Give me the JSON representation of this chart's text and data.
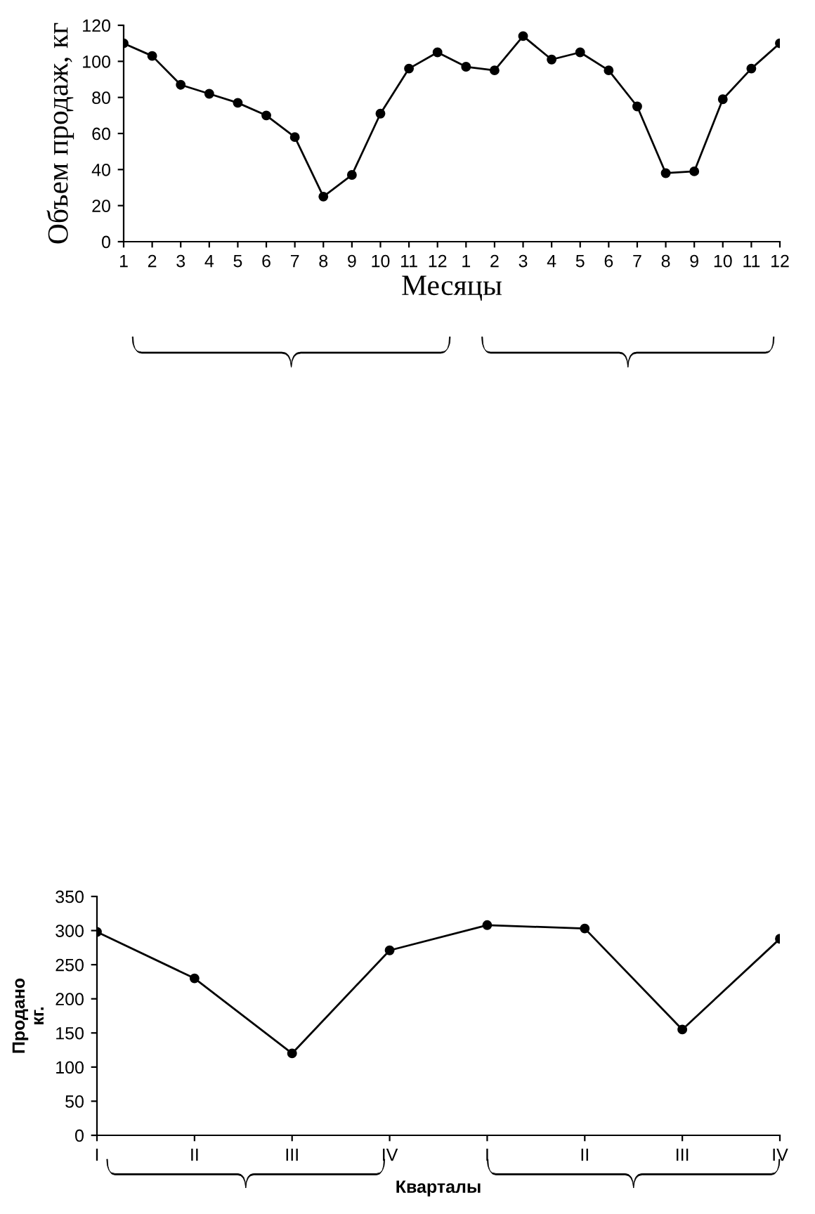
{
  "chart_data": [
    {
      "type": "line",
      "xlabel": "Месяцы",
      "ylabel": "Объем продаж, кг",
      "categories": [
        "1",
        "2",
        "3",
        "4",
        "5",
        "6",
        "7",
        "8",
        "9",
        "10",
        "11",
        "12",
        "1",
        "2",
        "3",
        "4",
        "5",
        "6",
        "7",
        "8",
        "9",
        "10",
        "11",
        "12"
      ],
      "series": [
        {
          "color": "#000000",
          "values": [
            110,
            103,
            87,
            82,
            77,
            70,
            58,
            25,
            37,
            71,
            96,
            105,
            97,
            95,
            114,
            101,
            105,
            95,
            75,
            38,
            39,
            79,
            96,
            110
          ]
        }
      ],
      "ylim": [
        0,
        120
      ],
      "yticks": [
        0,
        20,
        40,
        60,
        80,
        100,
        120
      ],
      "marker": "circle",
      "line_style": "solid",
      "grid": false,
      "legend": false
    },
    {
      "type": "line",
      "xlabel": "Кварталы",
      "ylabel": "Продано\nкг.",
      "categories": [
        "I",
        "II",
        "III",
        "IV",
        "I",
        "II",
        "III",
        "IV"
      ],
      "series": [
        {
          "color": "#000000",
          "values": [
            298,
            230,
            120,
            271,
            308,
            303,
            155,
            288
          ]
        }
      ],
      "ylim": [
        0,
        350
      ],
      "yticks": [
        0,
        50,
        100,
        150,
        200,
        250,
        300,
        350
      ],
      "marker": "circle",
      "line_style": "solid",
      "grid": false,
      "legend": false
    }
  ]
}
